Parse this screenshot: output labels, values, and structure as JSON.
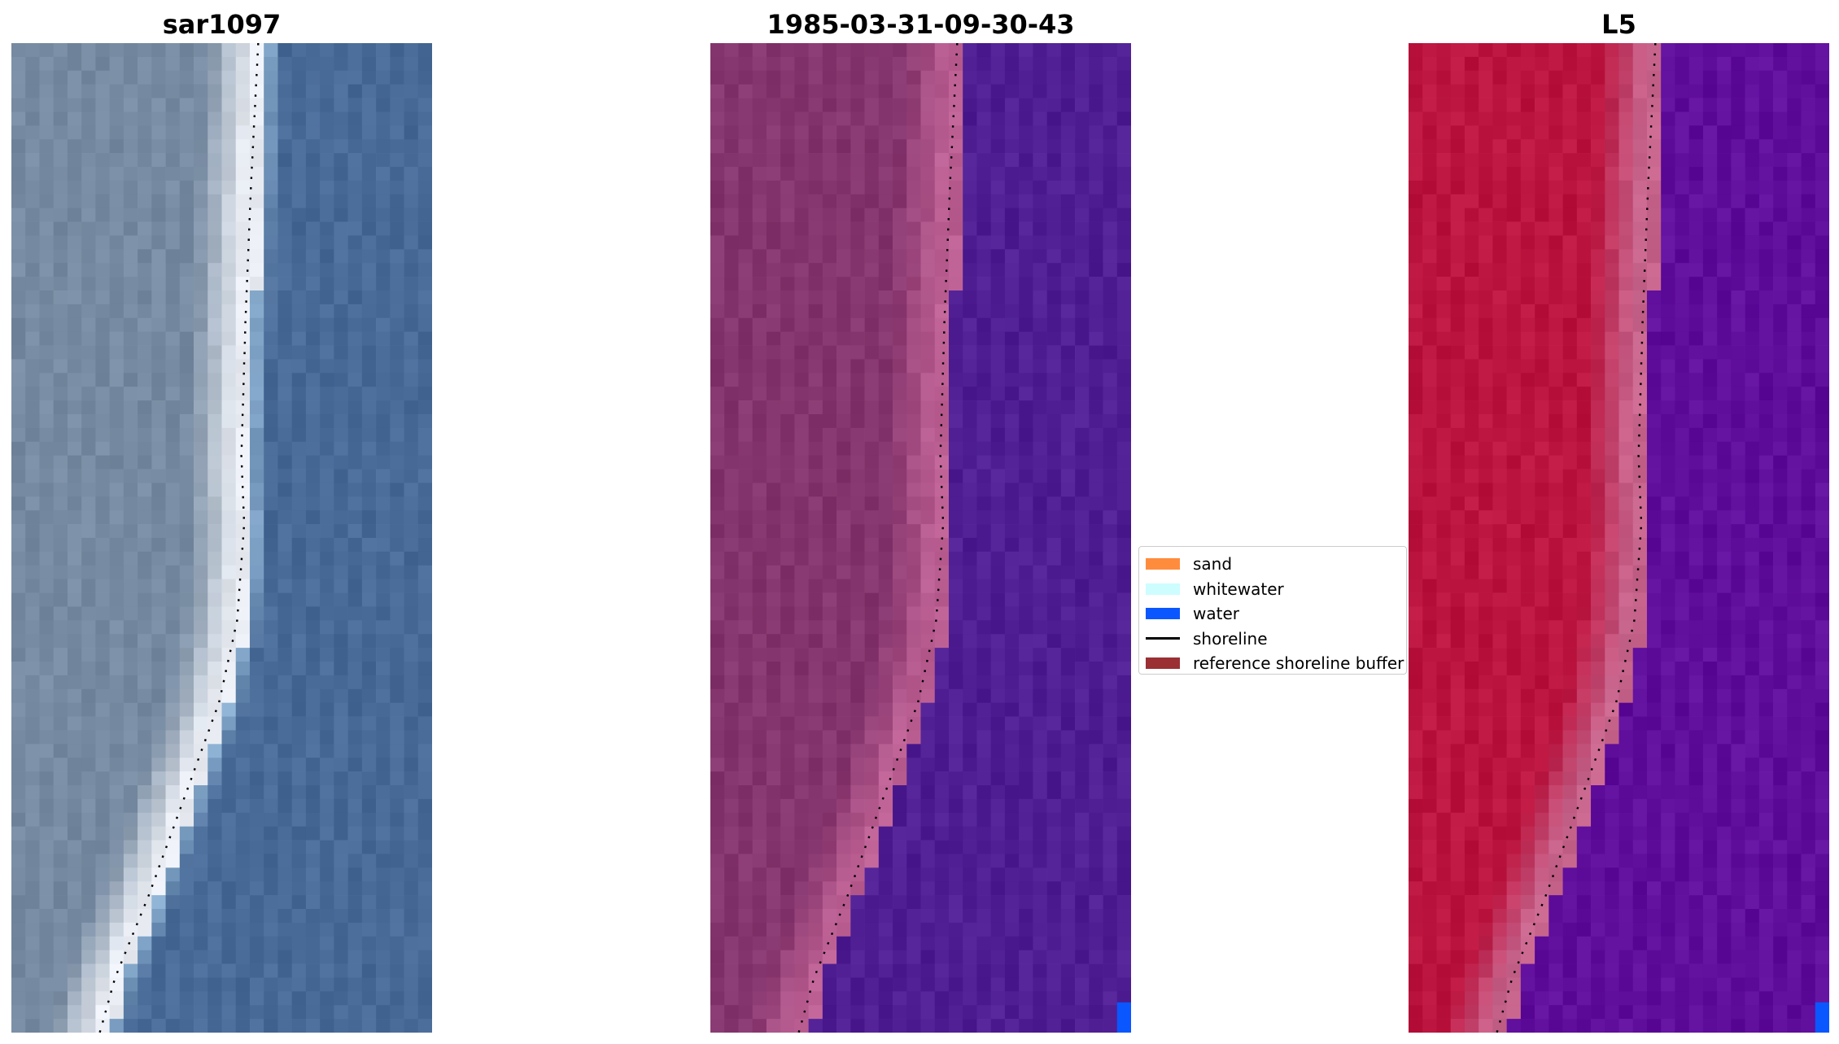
{
  "panels": [
    {
      "title": "sar1097",
      "kind": "rgb",
      "colors": {
        "land": "#7b8fa6",
        "beach": "#eef2f8",
        "water": "#4d6f9c"
      }
    },
    {
      "title": "1985-03-31-09-30-43",
      "kind": "classified",
      "colors": {
        "land": "#8a3a72",
        "beach": "#c06498",
        "water": "#542398",
        "water_patch": "#0b57ff"
      }
    },
    {
      "title": "L5",
      "kind": "index",
      "colors": {
        "land": "#c01a44",
        "beach": "#cc6a92",
        "water": "#6412a0",
        "water_patch": "#0b57ff"
      }
    }
  ],
  "legend": {
    "items": [
      {
        "label": "sand",
        "type": "patch",
        "color": "#ff8c3c"
      },
      {
        "label": "whitewater",
        "type": "patch",
        "color": "#cdfdff"
      },
      {
        "label": "water",
        "type": "patch",
        "color": "#0b57ff"
      },
      {
        "label": "shoreline",
        "type": "line",
        "color": "#000000"
      },
      {
        "label": "reference shoreline buffer",
        "type": "patch",
        "color": "#9a3034"
      }
    ]
  }
}
